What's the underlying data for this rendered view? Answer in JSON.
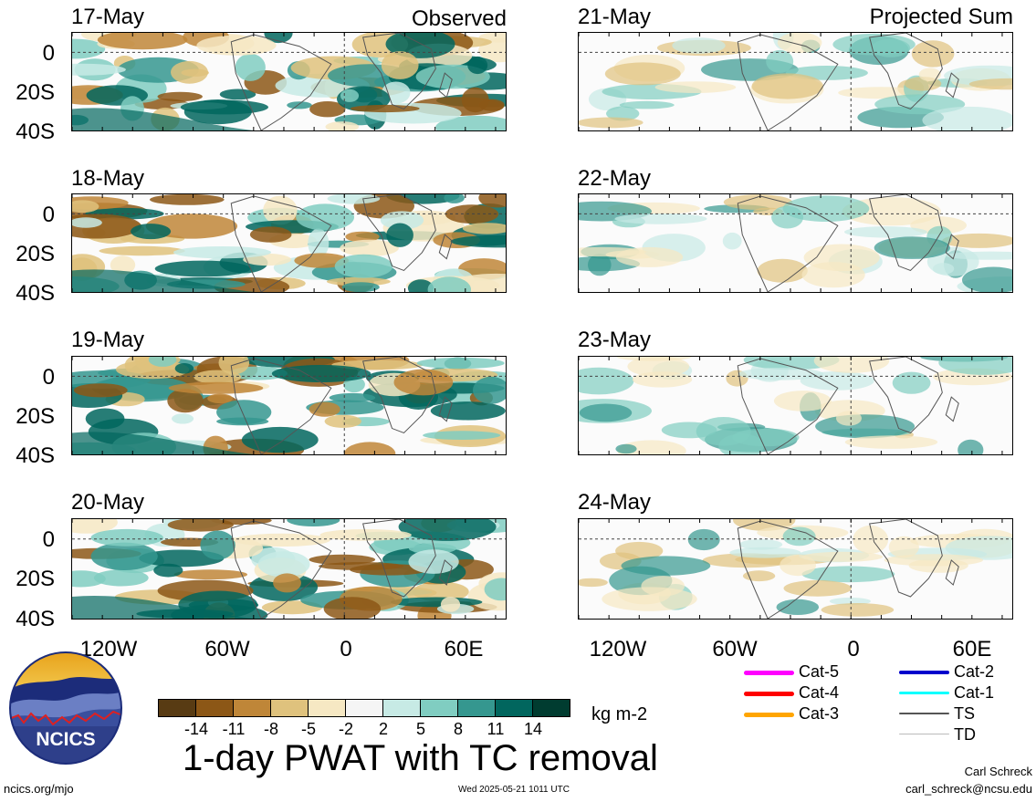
{
  "chart_data": {
    "type": "heatmap",
    "title": "1-day PWAT with TC removal",
    "units": "kg m-2",
    "xlim": [
      "135W",
      "80E"
    ],
    "ylim": [
      "40S",
      "10N"
    ],
    "x_tick_labels": [
      "120W",
      "60W",
      "0",
      "60E"
    ],
    "y_tick_labels": [
      "0",
      "20S",
      "40S"
    ],
    "colorbar": {
      "ticks": [
        "-14",
        "-11",
        "-8",
        "-5",
        "-2",
        "2",
        "5",
        "8",
        "11",
        "14"
      ],
      "colors": [
        "#583b13",
        "#8c5716",
        "#bf8638",
        "#dfc27d",
        "#f6e8c3",
        "#f5f5f5",
        "#c7eae5",
        "#80cdc1",
        "#35978f",
        "#01665e",
        "#003c30"
      ]
    },
    "panels": [
      {
        "date": "17-May",
        "tag": "Observed",
        "kind": "observed"
      },
      {
        "date": "18-May",
        "tag": "",
        "kind": "observed"
      },
      {
        "date": "19-May",
        "tag": "",
        "kind": "observed"
      },
      {
        "date": "20-May",
        "tag": "",
        "kind": "observed"
      },
      {
        "date": "21-May",
        "tag": "Projected Sum",
        "kind": "projected"
      },
      {
        "date": "22-May",
        "tag": "",
        "kind": "projected"
      },
      {
        "date": "23-May",
        "tag": "",
        "kind": "projected"
      },
      {
        "date": "24-May",
        "tag": "",
        "kind": "projected"
      }
    ]
  },
  "panels": {
    "p1": {
      "date": "17-May",
      "tag": "Observed"
    },
    "p2": {
      "date": "18-May"
    },
    "p3": {
      "date": "19-May"
    },
    "p4": {
      "date": "20-May"
    },
    "p5": {
      "date": "21-May",
      "tag": "Projected Sum"
    },
    "p6": {
      "date": "22-May"
    },
    "p7": {
      "date": "23-May"
    },
    "p8": {
      "date": "24-May"
    }
  },
  "axes": {
    "y": [
      "0",
      "20S",
      "40S"
    ],
    "x": [
      "120W",
      "60W",
      "0",
      "60E"
    ]
  },
  "colorbar_ticks": [
    "-14",
    "-11",
    "-8",
    "-5",
    "-2",
    "2",
    "5",
    "8",
    "11",
    "14"
  ],
  "units": "kg m-2",
  "title": "1-day PWAT with TC removal",
  "tc_legend": {
    "cat5": {
      "label": "Cat-5",
      "color": "#ff00ff"
    },
    "cat4": {
      "label": "Cat-4",
      "color": "#ff0000"
    },
    "cat3": {
      "label": "Cat-3",
      "color": "#ffa500"
    },
    "cat2": {
      "label": "Cat-2",
      "color": "#0000cc"
    },
    "cat1": {
      "label": "Cat-1",
      "color": "#00ffff"
    },
    "ts": {
      "label": "TS",
      "color": "#555555"
    },
    "td": {
      "label": "TD",
      "color": "#bbbbbb"
    }
  },
  "logo": {
    "text": "NCICS"
  },
  "footer": {
    "website": "ncics.org/mjo",
    "timestamp": "Wed 2025-05-21 1011 UTC",
    "author": "Carl Schreck",
    "email": "carl_schreck@ncsu.edu"
  }
}
